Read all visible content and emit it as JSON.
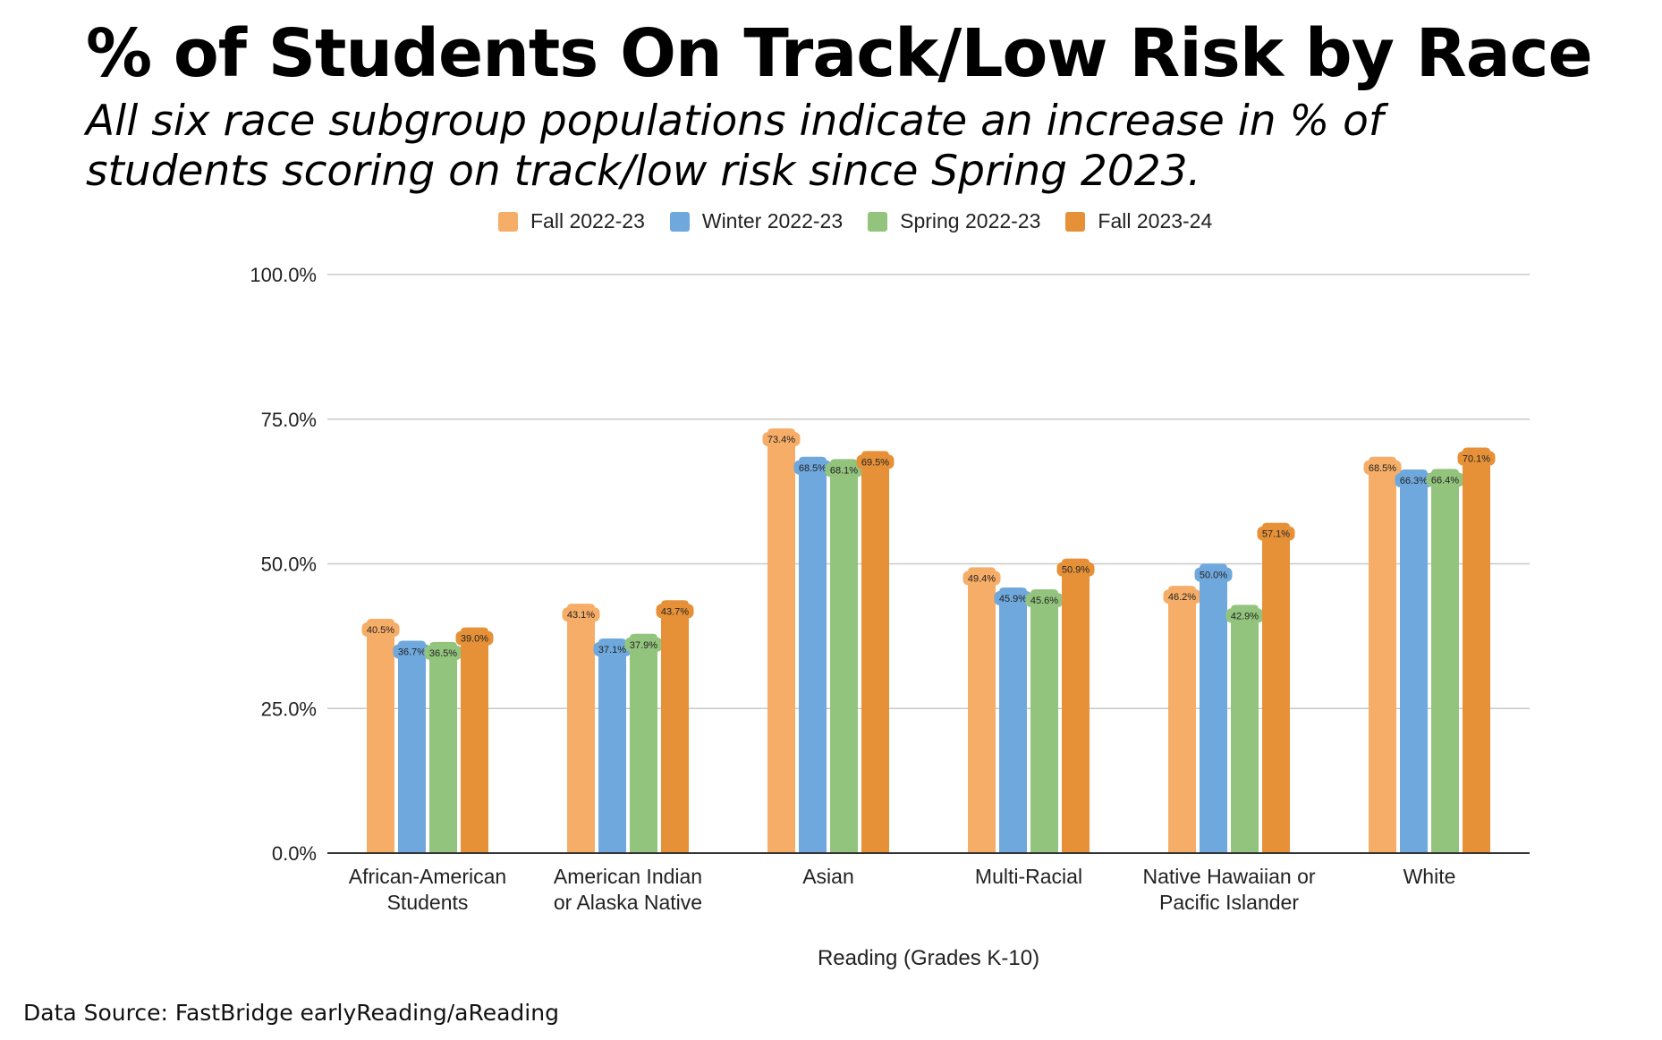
{
  "header": {
    "title": "% of Students On Track/Low Risk by Race",
    "subtitle": "All six race subgroup populations indicate an increase in % of students scoring on track/low risk since Spring 2023."
  },
  "footer": {
    "source": "Data Source: FastBridge earlyReading/aReading"
  },
  "chart_data": {
    "type": "bar",
    "title": "% of Students On Track/Low Risk by Race",
    "xlabel": "Reading (Grades K-10)",
    "ylabel": "",
    "ylim": [
      0,
      100
    ],
    "yticks": [
      "0.0%",
      "25.0%",
      "50.0%",
      "75.0%",
      "100.0%"
    ],
    "legend_position": "top-center",
    "grid": true,
    "categories": [
      [
        "African-American",
        "Students"
      ],
      [
        "American Indian",
        "or Alaska Native"
      ],
      [
        "Asian"
      ],
      [
        "Multi-Racial"
      ],
      [
        "Native Hawaiian or",
        "Pacific Islander"
      ],
      [
        "White"
      ]
    ],
    "series": [
      {
        "name": "Fall 2022-23",
        "color": "#f6ad67",
        "values": [
          40.5,
          43.1,
          73.4,
          49.4,
          46.2,
          68.5
        ],
        "labels": [
          "40.5%",
          "43.1%",
          "73.4%",
          "49.4%",
          "46.2%",
          "68.5%"
        ]
      },
      {
        "name": "Winter 2022-23",
        "color": "#6fa8dc",
        "values": [
          36.7,
          37.1,
          68.5,
          45.9,
          50.0,
          66.3
        ],
        "labels": [
          "36.7%",
          "37.1%",
          "68.5%",
          "45.9%",
          "50.0%",
          "66.3%"
        ]
      },
      {
        "name": "Spring 2022-23",
        "color": "#93c47d",
        "values": [
          36.5,
          37.9,
          68.1,
          45.6,
          42.9,
          66.4
        ],
        "labels": [
          "36.5%",
          "37.9%",
          "68.1%",
          "45.6%",
          "42.9%",
          "66.4%"
        ]
      },
      {
        "name": "Fall 2023-24",
        "color": "#e69138",
        "values": [
          39.0,
          43.7,
          69.5,
          50.9,
          57.1,
          70.1
        ],
        "labels": [
          "39.0%",
          "43.7%",
          "69.5%",
          "50.9%",
          "57.1%",
          "70.1%"
        ]
      }
    ]
  }
}
